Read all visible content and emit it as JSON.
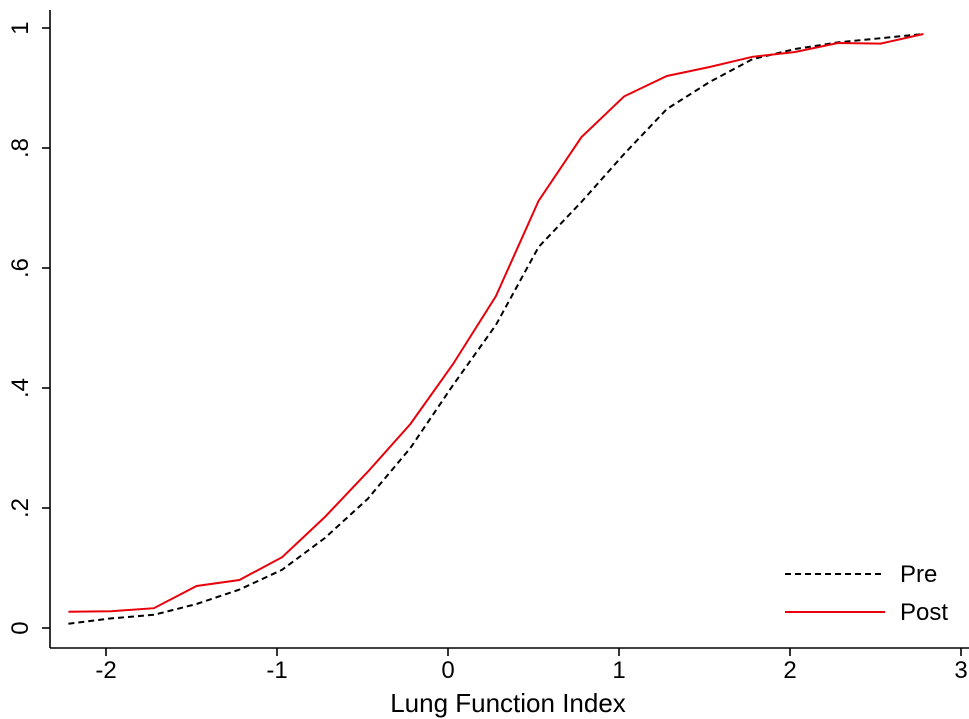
{
  "chart_data": {
    "type": "line",
    "title": "",
    "xlabel": "Lung Function Index",
    "ylabel": "",
    "xlim": [
      -2.25,
      3
    ],
    "ylim": [
      0,
      1
    ],
    "xticks": [
      -2,
      -1,
      0,
      1,
      2,
      3
    ],
    "xtick_labels": [
      "-2",
      "-1",
      "0",
      "1",
      "2",
      "3"
    ],
    "yticks": [
      0,
      0.2,
      0.4,
      0.6,
      0.8,
      1
    ],
    "ytick_labels": [
      "0",
      ".2",
      ".4",
      ".6",
      ".8",
      "1"
    ],
    "grid": false,
    "legend_position": "bottom-right",
    "series": [
      {
        "name": "Pre",
        "style": "dashed",
        "color": "#000000",
        "points": [
          [
            -2.22,
            0.007
          ],
          [
            -1.97,
            0.016
          ],
          [
            -1.72,
            0.022
          ],
          [
            -1.47,
            0.04
          ],
          [
            -1.22,
            0.064
          ],
          [
            -0.97,
            0.097
          ],
          [
            -0.72,
            0.15
          ],
          [
            -0.47,
            0.215
          ],
          [
            -0.22,
            0.3
          ],
          [
            0.03,
            0.405
          ],
          [
            0.28,
            0.505
          ],
          [
            0.53,
            0.635
          ],
          [
            0.78,
            0.71
          ],
          [
            1.03,
            0.79
          ],
          [
            1.28,
            0.865
          ],
          [
            1.53,
            0.91
          ],
          [
            1.78,
            0.948
          ],
          [
            2.03,
            0.965
          ],
          [
            2.28,
            0.976
          ],
          [
            2.53,
            0.983
          ],
          [
            2.78,
            0.99
          ]
        ]
      },
      {
        "name": "Post",
        "style": "solid",
        "color": "#e8000b",
        "points": [
          [
            -2.22,
            0.027
          ],
          [
            -1.97,
            0.028
          ],
          [
            -1.72,
            0.033
          ],
          [
            -1.47,
            0.07
          ],
          [
            -1.22,
            0.08
          ],
          [
            -0.97,
            0.118
          ],
          [
            -0.72,
            0.185
          ],
          [
            -0.47,
            0.26
          ],
          [
            -0.22,
            0.34
          ],
          [
            0.03,
            0.44
          ],
          [
            0.28,
            0.553
          ],
          [
            0.53,
            0.712
          ],
          [
            0.78,
            0.818
          ],
          [
            1.03,
            0.886
          ],
          [
            1.28,
            0.92
          ],
          [
            1.53,
            0.935
          ],
          [
            1.78,
            0.952
          ],
          [
            2.03,
            0.96
          ],
          [
            2.28,
            0.975
          ],
          [
            2.53,
            0.974
          ],
          [
            2.78,
            0.99
          ]
        ]
      }
    ]
  }
}
